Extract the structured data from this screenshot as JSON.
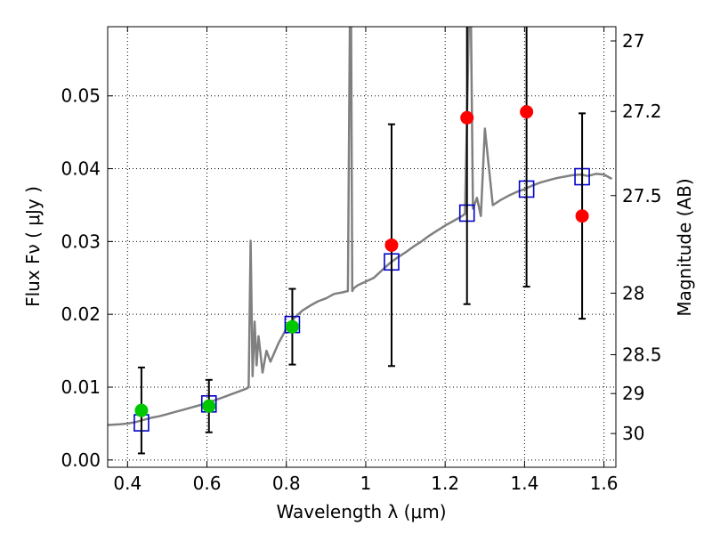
{
  "chart_data": {
    "type": "scatter",
    "xlabel": "Wavelength  λ (μm)",
    "ylabel": "Flux  Fν  ( μJy )",
    "y2label": "Magnitude (AB)",
    "xlim": [
      0.35,
      1.63
    ],
    "ylim": [
      -0.001,
      0.0595
    ],
    "grid": true,
    "x_ticks": [
      {
        "value": 0.4,
        "label": "0.4"
      },
      {
        "value": 0.6,
        "label": "0.6"
      },
      {
        "value": 0.8,
        "label": "0.8"
      },
      {
        "value": 1.0,
        "label": "1"
      },
      {
        "value": 1.2,
        "label": "1.2"
      },
      {
        "value": 1.4,
        "label": "1.4"
      },
      {
        "value": 1.6,
        "label": "1.6"
      }
    ],
    "y_ticks": [
      {
        "value": 0.0,
        "label": "0.00"
      },
      {
        "value": 0.01,
        "label": "0.01"
      },
      {
        "value": 0.02,
        "label": "0.02"
      },
      {
        "value": 0.03,
        "label": "0.03"
      },
      {
        "value": 0.04,
        "label": "0.04"
      },
      {
        "value": 0.05,
        "label": "0.05"
      }
    ],
    "y2_ticks": [
      {
        "value": 27.0,
        "label": "27"
      },
      {
        "value": 27.2,
        "label": "27.2"
      },
      {
        "value": 27.5,
        "label": "27.5"
      },
      {
        "value": 28.0,
        "label": "28"
      },
      {
        "value": 28.5,
        "label": "28.5"
      },
      {
        "value": 29.0,
        "label": "29"
      },
      {
        "value": 30.0,
        "label": "30"
      }
    ],
    "colors": {
      "model": "#808080",
      "green": "#00c800",
      "red": "#ff0000",
      "square": "#0000cc",
      "errorbar": "#000000"
    },
    "model_spectrum": {
      "x": [
        0.35,
        0.38,
        0.4,
        0.42,
        0.44,
        0.46,
        0.48,
        0.5,
        0.52,
        0.54,
        0.56,
        0.58,
        0.6,
        0.62,
        0.64,
        0.66,
        0.68,
        0.7,
        0.705,
        0.71,
        0.715,
        0.72,
        0.725,
        0.73,
        0.74,
        0.75,
        0.76,
        0.78,
        0.8,
        0.82,
        0.84,
        0.86,
        0.88,
        0.9,
        0.92,
        0.94,
        0.955,
        0.96,
        0.963,
        0.966,
        0.97,
        0.98,
        1.0,
        1.02,
        1.04,
        1.06,
        1.08,
        1.1,
        1.12,
        1.14,
        1.16,
        1.18,
        1.2,
        1.22,
        1.24,
        1.25,
        1.26,
        1.265,
        1.27,
        1.28,
        1.29,
        1.3,
        1.32,
        1.34,
        1.36,
        1.38,
        1.4,
        1.42,
        1.44,
        1.46,
        1.48,
        1.5,
        1.52,
        1.54,
        1.56,
        1.58,
        1.6,
        1.62
      ],
      "y": [
        0.0048,
        0.0049,
        0.005,
        0.0052,
        0.0055,
        0.0058,
        0.006,
        0.0063,
        0.0066,
        0.0069,
        0.0072,
        0.0075,
        0.0078,
        0.0082,
        0.0086,
        0.009,
        0.0094,
        0.0098,
        0.01,
        0.0301,
        0.0115,
        0.019,
        0.013,
        0.017,
        0.012,
        0.015,
        0.0135,
        0.016,
        0.018,
        0.0195,
        0.0205,
        0.0212,
        0.0218,
        0.0222,
        0.0228,
        0.023,
        0.0232,
        0.06,
        0.06,
        0.0232,
        0.0236,
        0.024,
        0.0245,
        0.025,
        0.026,
        0.027,
        0.0278,
        0.0285,
        0.0293,
        0.03,
        0.0308,
        0.0315,
        0.0322,
        0.0328,
        0.0334,
        0.0338,
        0.06,
        0.06,
        0.0345,
        0.036,
        0.0335,
        0.0455,
        0.035,
        0.0357,
        0.0363,
        0.0368,
        0.0372,
        0.0377,
        0.0381,
        0.0384,
        0.0387,
        0.0389,
        0.0391,
        0.0392,
        0.039,
        0.0393,
        0.0392,
        0.0386
      ]
    },
    "series": [
      {
        "marker": "square",
        "color": "#0000cc",
        "points": [
          {
            "x": 0.435,
            "y": 0.0051
          },
          {
            "x": 0.605,
            "y": 0.0077
          },
          {
            "x": 0.815,
            "y": 0.0186
          },
          {
            "x": 1.065,
            "y": 0.0272
          },
          {
            "x": 1.255,
            "y": 0.0339
          },
          {
            "x": 1.405,
            "y": 0.0372
          },
          {
            "x": 1.545,
            "y": 0.0389
          }
        ]
      },
      {
        "marker": "circle",
        "color": "#00c800",
        "points": [
          {
            "x": 0.435,
            "y": 0.0068,
            "err": 0.0059
          },
          {
            "x": 0.605,
            "y": 0.0074,
            "err": 0.0036
          },
          {
            "x": 0.815,
            "y": 0.0183,
            "err": 0.0052
          }
        ]
      },
      {
        "marker": "circle",
        "color": "#ff0000",
        "points": [
          {
            "x": 1.065,
            "y": 0.0295,
            "err": 0.0166
          },
          {
            "x": 1.255,
            "y": 0.047,
            "err": 0.0256
          },
          {
            "x": 1.405,
            "y": 0.0478,
            "err": 0.024
          },
          {
            "x": 1.545,
            "y": 0.0335,
            "err": 0.0141
          }
        ]
      }
    ]
  }
}
